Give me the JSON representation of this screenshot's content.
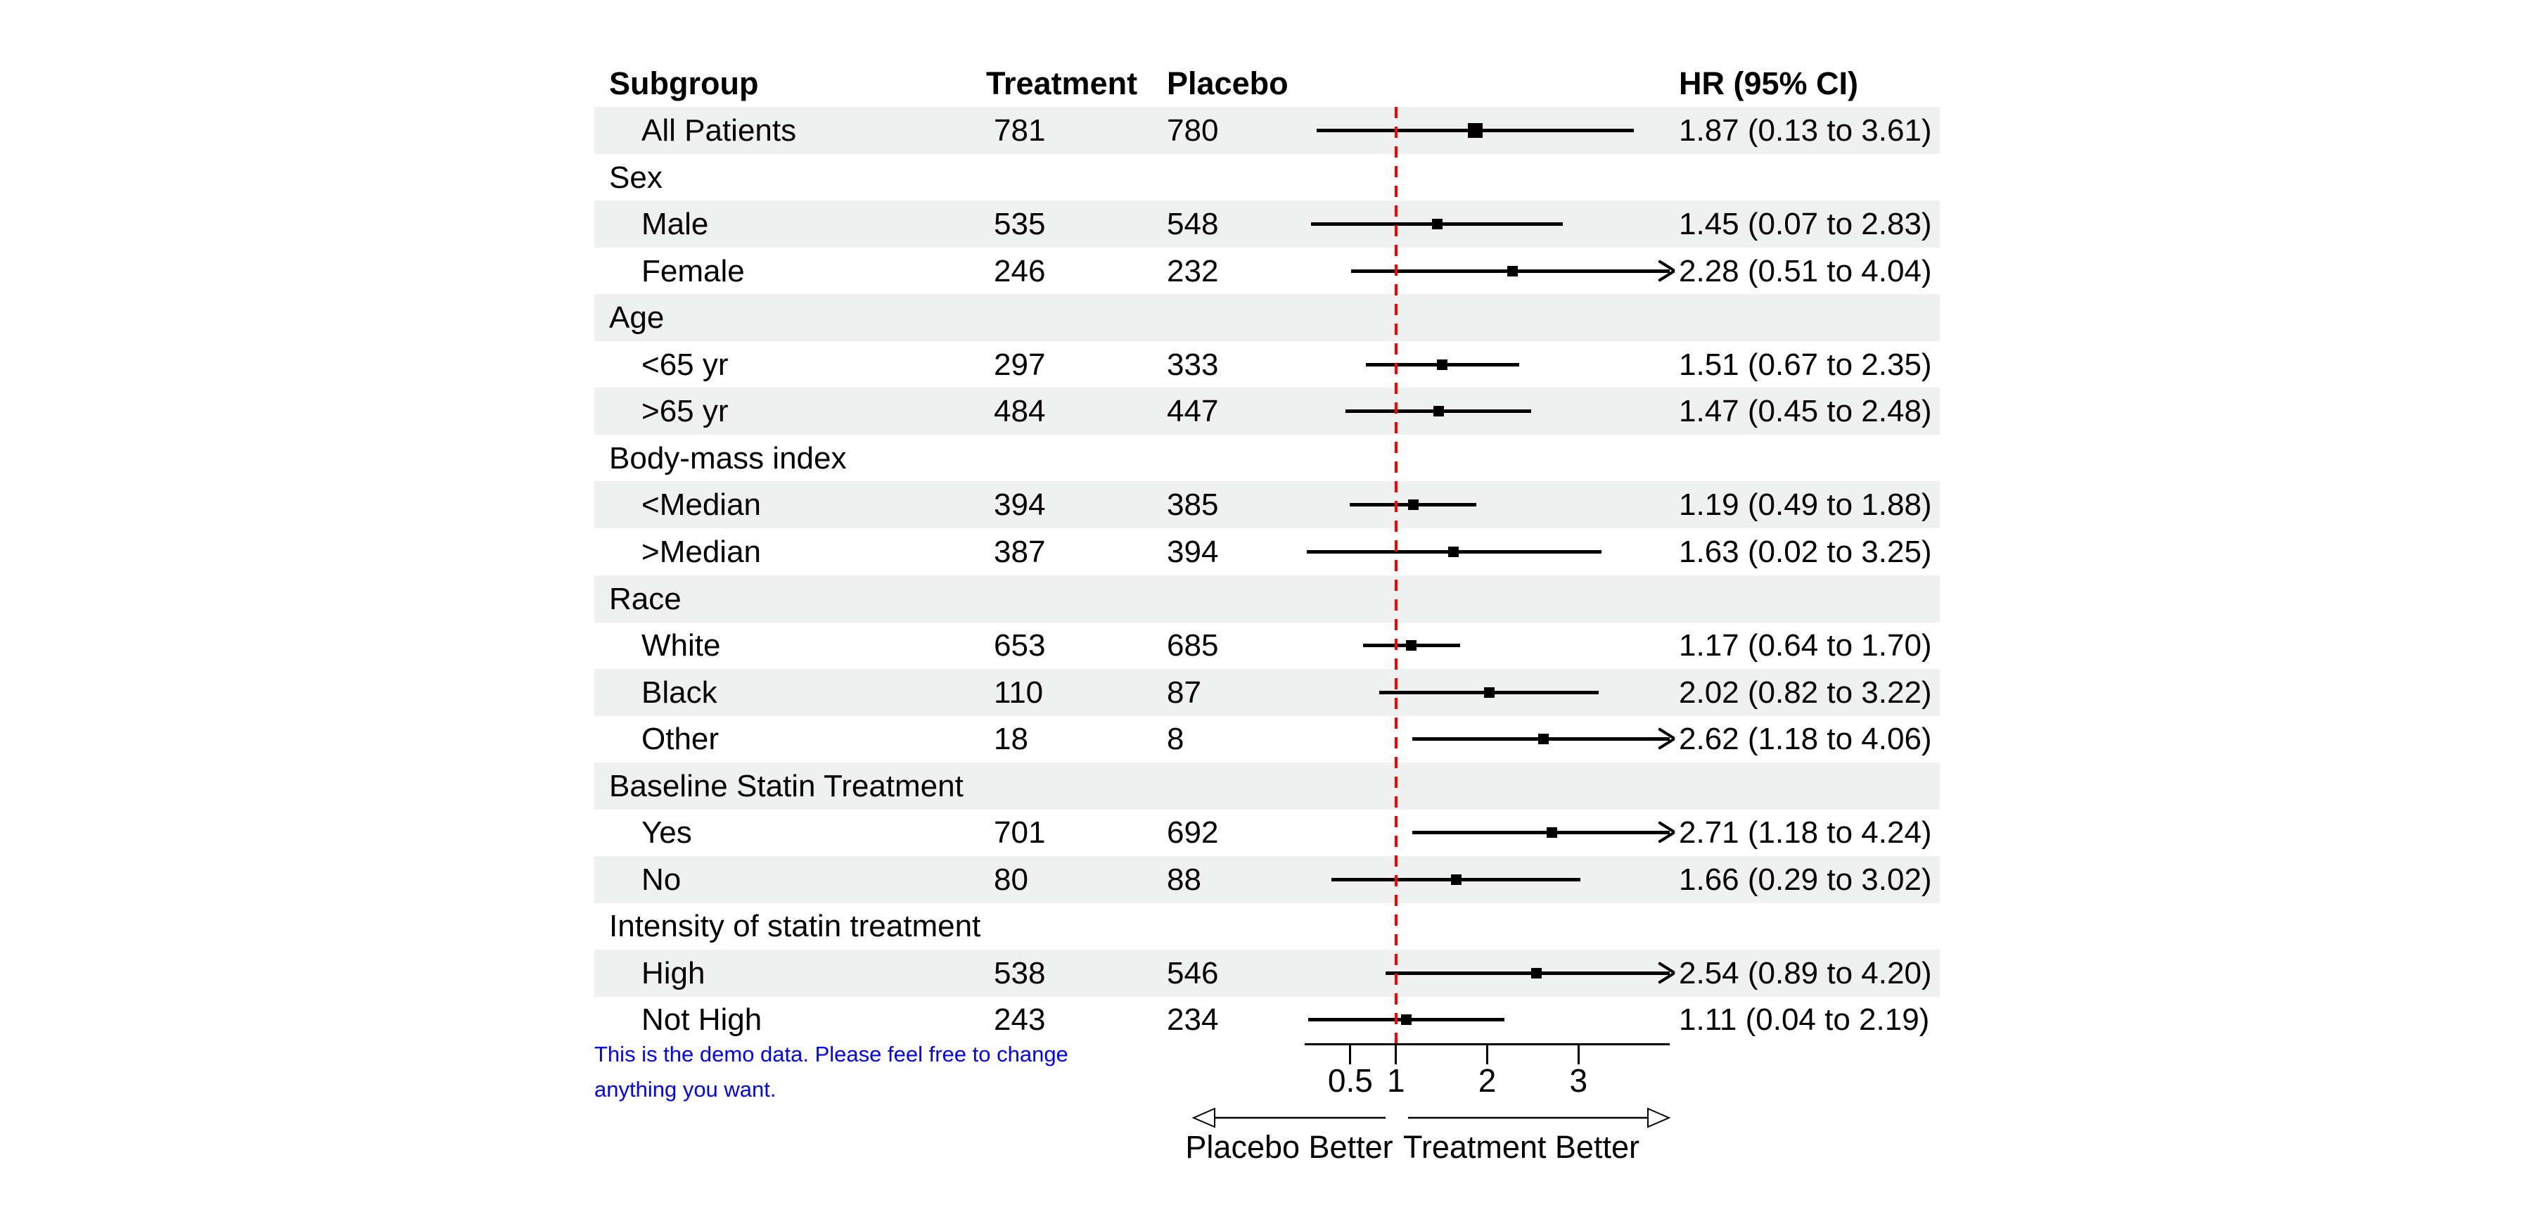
{
  "figure": {
    "background": "#ffffff"
  },
  "colors": {
    "stripe": "#eef1f0",
    "text": "#000000",
    "ci": "#000000",
    "reference_line": "#fe0000",
    "note": "#0000fd"
  },
  "note": {
    "line1": "This is the demo data. Please feel free to change",
    "line2": "anything you want."
  },
  "chart_data": {
    "type": "scatter",
    "variant": "forest-plot",
    "title": "",
    "columns": [
      "Subgroup",
      "Treatment",
      "Placebo",
      "HR (95% CI)"
    ],
    "x_scale": "linear",
    "x_range": [
      0,
      4
    ],
    "x_ticks": [
      "0.5",
      "1",
      "2",
      "3"
    ],
    "x_tick_values": [
      0.5,
      1,
      2,
      3
    ],
    "reference_line": 1,
    "clip_upper": 4,
    "xlabel_left": "Placebo Better",
    "xlabel_right": "Treatment Better",
    "rows": [
      {
        "kind": "data",
        "label": "All Patients",
        "treatment": "781",
        "placebo": "780",
        "hr": "1.87 (0.13 to 3.61)",
        "est": 1.87,
        "lo": 0.13,
        "hi": 3.61,
        "clipped": false,
        "summary": true
      },
      {
        "kind": "group",
        "label": "Sex"
      },
      {
        "kind": "data",
        "label": "Male",
        "treatment": "535",
        "placebo": "548",
        "hr": "1.45 (0.07 to 2.83)",
        "est": 1.45,
        "lo": 0.07,
        "hi": 2.83,
        "clipped": false,
        "summary": false
      },
      {
        "kind": "data",
        "label": "Female",
        "treatment": "246",
        "placebo": "232",
        "hr": "2.28 (0.51 to 4.04)",
        "est": 2.28,
        "lo": 0.51,
        "hi": 4.04,
        "clipped": true,
        "summary": false
      },
      {
        "kind": "group",
        "label": "Age"
      },
      {
        "kind": "data",
        "label": "<65 yr",
        "treatment": "297",
        "placebo": "333",
        "hr": "1.51 (0.67 to 2.35)",
        "est": 1.51,
        "lo": 0.67,
        "hi": 2.35,
        "clipped": false,
        "summary": false
      },
      {
        "kind": "data",
        "label": ">65 yr",
        "treatment": "484",
        "placebo": "447",
        "hr": "1.47 (0.45 to 2.48)",
        "est": 1.47,
        "lo": 0.45,
        "hi": 2.48,
        "clipped": false,
        "summary": false
      },
      {
        "kind": "group",
        "label": "Body-mass index"
      },
      {
        "kind": "data",
        "label": "<Median",
        "treatment": "394",
        "placebo": "385",
        "hr": "1.19 (0.49 to 1.88)",
        "est": 1.19,
        "lo": 0.49,
        "hi": 1.88,
        "clipped": false,
        "summary": false
      },
      {
        "kind": "data",
        "label": ">Median",
        "treatment": "387",
        "placebo": "394",
        "hr": "1.63 (0.02 to 3.25)",
        "est": 1.63,
        "lo": 0.02,
        "hi": 3.25,
        "clipped": false,
        "summary": false
      },
      {
        "kind": "group",
        "label": "Race"
      },
      {
        "kind": "data",
        "label": "White",
        "treatment": "653",
        "placebo": "685",
        "hr": "1.17 (0.64 to 1.70)",
        "est": 1.17,
        "lo": 0.64,
        "hi": 1.7,
        "clipped": false,
        "summary": false
      },
      {
        "kind": "data",
        "label": "Black",
        "treatment": "110",
        "placebo": "87",
        "hr": "2.02 (0.82 to 3.22)",
        "est": 2.02,
        "lo": 0.82,
        "hi": 3.22,
        "clipped": false,
        "summary": false
      },
      {
        "kind": "data",
        "label": "Other",
        "treatment": "18",
        "placebo": "8",
        "hr": "2.62 (1.18 to 4.06)",
        "est": 2.62,
        "lo": 1.18,
        "hi": 4.06,
        "clipped": true,
        "summary": false
      },
      {
        "kind": "group",
        "label": "Baseline Statin Treatment"
      },
      {
        "kind": "data",
        "label": "Yes",
        "treatment": "701",
        "placebo": "692",
        "hr": "2.71 (1.18 to 4.24)",
        "est": 2.71,
        "lo": 1.18,
        "hi": 4.24,
        "clipped": true,
        "summary": false
      },
      {
        "kind": "data",
        "label": "No",
        "treatment": "80",
        "placebo": "88",
        "hr": "1.66 (0.29 to 3.02)",
        "est": 1.66,
        "lo": 0.29,
        "hi": 3.02,
        "clipped": false,
        "summary": false
      },
      {
        "kind": "group",
        "label": "Intensity of statin treatment"
      },
      {
        "kind": "data",
        "label": "High",
        "treatment": "538",
        "placebo": "546",
        "hr": "2.54 (0.89 to 4.20)",
        "est": 2.54,
        "lo": 0.89,
        "hi": 4.2,
        "clipped": true,
        "summary": false
      },
      {
        "kind": "data",
        "label": "Not High",
        "treatment": "243",
        "placebo": "234",
        "hr": "1.11 (0.04 to 2.19)",
        "est": 1.11,
        "lo": 0.04,
        "hi": 2.19,
        "clipped": false,
        "summary": false
      }
    ]
  }
}
